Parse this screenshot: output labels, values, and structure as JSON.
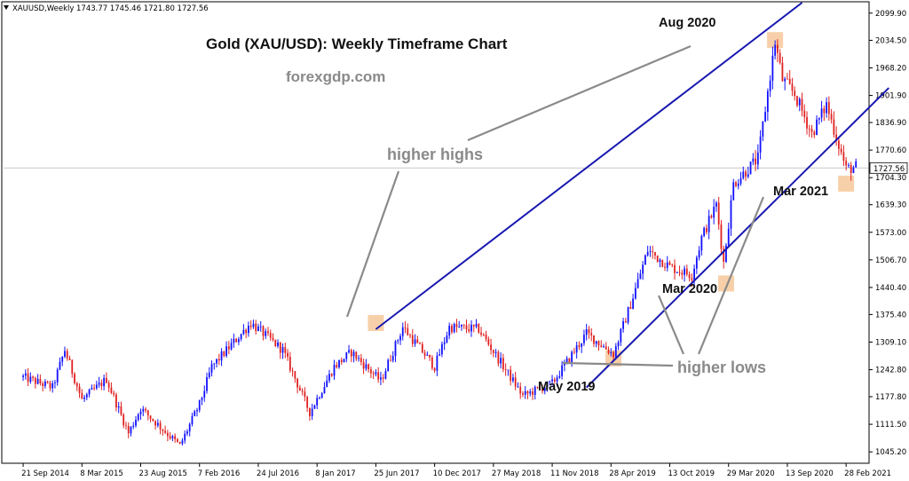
{
  "header": {
    "symbol": "XAUUSD,Weekly",
    "ohlc": "1743.77 1745.46 1721.80 1727.56"
  },
  "chart_data": {
    "type": "candlestick",
    "title": "Gold (XAU/USD): Weekly Timeframe Chart",
    "subtitle": "forexgdp.com",
    "y_ticks": [
      2099.9,
      2034.5,
      1968.2,
      1901.9,
      1836.9,
      1770.6,
      1704.3,
      1639.3,
      1573.0,
      1506.7,
      1440.4,
      1375.4,
      1309.1,
      1242.8,
      1177.8,
      1111.5,
      1045.2
    ],
    "y_tick_labels": [
      "2099.90",
      "2034.50",
      "1968.20",
      "1901.90",
      "1836.90",
      "1770.60",
      "1704.30",
      "1639.30",
      "1573.00",
      "1506.70",
      "1440.40",
      "1375.40",
      "1309.10",
      "1242.80",
      "1177.80",
      "1111.50",
      "1045.20"
    ],
    "ylim": [
      1020,
      2125
    ],
    "current_price": 1727.56,
    "current_price_label": "1727.56",
    "x_tick_labels": [
      "21 Sep 2014",
      "8 Mar 2015",
      "23 Aug 2015",
      "7 Feb 2016",
      "24 Jul 2016",
      "8 Jan 2017",
      "25 Jun 2017",
      "10 Dec 2017",
      "27 May 2018",
      "11 Nov 2018",
      "28 Apr 2019",
      "13 Oct 2019",
      "29 Mar 2020",
      "13 Sep 2020",
      "28 Feb 2021"
    ],
    "anchors": [
      {
        "date": "2014-09-21",
        "price": 1225
      },
      {
        "date": "2014-12-14",
        "price": 1200
      },
      {
        "date": "2015-01-18",
        "price": 1290
      },
      {
        "date": "2015-03-08",
        "price": 1170
      },
      {
        "date": "2015-05-17",
        "price": 1220
      },
      {
        "date": "2015-07-19",
        "price": 1090
      },
      {
        "date": "2015-08-23",
        "price": 1150
      },
      {
        "date": "2015-12-13",
        "price": 1060
      },
      {
        "date": "2016-02-07",
        "price": 1160
      },
      {
        "date": "2016-03-13",
        "price": 1250
      },
      {
        "date": "2016-07-03",
        "price": 1355
      },
      {
        "date": "2016-10-02",
        "price": 1290
      },
      {
        "date": "2016-12-18",
        "price": 1140
      },
      {
        "date": "2017-02-26",
        "price": 1250
      },
      {
        "date": "2017-04-16",
        "price": 1285
      },
      {
        "date": "2017-07-09",
        "price": 1215
      },
      {
        "date": "2017-09-10",
        "price": 1345
      },
      {
        "date": "2017-12-10",
        "price": 1250
      },
      {
        "date": "2018-01-21",
        "price": 1345
      },
      {
        "date": "2018-04-15",
        "price": 1340
      },
      {
        "date": "2018-08-19",
        "price": 1180
      },
      {
        "date": "2018-11-11",
        "price": 1210
      },
      {
        "date": "2019-02-17",
        "price": 1330
      },
      {
        "date": "2019-05-05",
        "price": 1280
      },
      {
        "date": "2019-06-23",
        "price": 1400
      },
      {
        "date": "2019-08-11",
        "price": 1530
      },
      {
        "date": "2019-10-13",
        "price": 1490
      },
      {
        "date": "2019-12-15",
        "price": 1470
      },
      {
        "date": "2020-01-12",
        "price": 1560
      },
      {
        "date": "2020-02-23",
        "price": 1640
      },
      {
        "date": "2020-03-15",
        "price": 1500
      },
      {
        "date": "2020-04-12",
        "price": 1690
      },
      {
        "date": "2020-06-21",
        "price": 1750
      },
      {
        "date": "2020-07-26",
        "price": 1950
      },
      {
        "date": "2020-08-09",
        "price": 2030
      },
      {
        "date": "2020-08-30",
        "price": 1940
      },
      {
        "date": "2020-10-04",
        "price": 1905
      },
      {
        "date": "2020-11-22",
        "price": 1810
      },
      {
        "date": "2021-01-03",
        "price": 1880
      },
      {
        "date": "2021-02-28",
        "price": 1725
      },
      {
        "date": "2021-03-28",
        "price": 1730
      }
    ],
    "trendlines": [
      {
        "name": "upper-channel",
        "from": {
          "date": "2017-06-25",
          "price": 1340
        },
        "to": {
          "date": "2020-10-25",
          "price": 2125
        }
      },
      {
        "name": "lower-channel",
        "from": {
          "date": "2019-02-17",
          "price": 1200
        },
        "to": {
          "date": "2021-06-30",
          "price": 1920
        }
      }
    ],
    "highlights": [
      {
        "name": "highlight-jun-2017",
        "date": "2017-06-25",
        "price": 1355
      },
      {
        "name": "highlight-may-2019",
        "date": "2019-05-05",
        "price": 1270
      },
      {
        "name": "highlight-mar-2020",
        "date": "2020-03-22",
        "price": 1450
      },
      {
        "name": "highlight-aug-2020",
        "date": "2020-08-09",
        "price": 2035
      },
      {
        "name": "highlight-mar-2021",
        "date": "2021-02-28",
        "price": 1690
      }
    ],
    "annotations": {
      "higher_highs": "higher highs",
      "higher_lows": "higher lows",
      "aug_2020": "Aug 2020",
      "mar_2020": "Mar 2020",
      "may_2019": "May 2019",
      "mar_2021": "Mar 2021"
    },
    "colors": {
      "bull": "#1010ff",
      "bear": "#e02020",
      "trendline": "#1818b0",
      "highlight": "#f6c89a",
      "callout_line": "#8a8a8a",
      "grid": "#c8c8c8"
    }
  }
}
